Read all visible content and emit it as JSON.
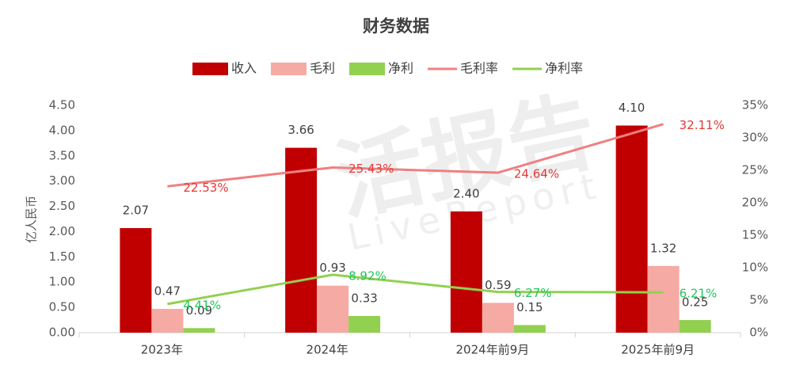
{
  "chart_data": {
    "type": "bar",
    "title": "财务数据",
    "y_label": "亿人民币",
    "watermark": [
      "活报告",
      "LiveReport"
    ],
    "categories": [
      "2023年",
      "2024年",
      "2024年前9月",
      "2025年前9月"
    ],
    "series": [
      {
        "name": "收入",
        "type": "bar",
        "color": "#c00000",
        "values": [
          2.07,
          3.66,
          2.4,
          4.1
        ],
        "value_labels": [
          "2.07",
          "3.66",
          "2.40",
          "4.10"
        ]
      },
      {
        "name": "毛利",
        "type": "bar",
        "color": "#f5aaa3",
        "values": [
          0.47,
          0.93,
          0.59,
          1.32
        ],
        "value_labels": [
          "0.47",
          "0.93",
          "0.59",
          "1.32"
        ]
      },
      {
        "name": "净利",
        "type": "bar",
        "color": "#92d050",
        "values": [
          0.09,
          0.33,
          0.15,
          0.25
        ],
        "value_labels": [
          "0.09",
          "0.33",
          "0.15",
          "0.25"
        ]
      },
      {
        "name": "毛利率",
        "type": "line",
        "axis": "y2",
        "color": "#f08080",
        "label_color": "#e53935",
        "values": [
          22.53,
          25.43,
          24.64,
          32.11
        ],
        "value_labels": [
          "22.53%",
          "25.43%",
          "24.64%",
          "32.11%"
        ]
      },
      {
        "name": "净利率",
        "type": "line",
        "axis": "y2",
        "color": "#92d050",
        "label_color": "#22c55e",
        "values": [
          4.41,
          8.92,
          6.27,
          6.21
        ],
        "value_labels": [
          "4.41%",
          "8.92%",
          "6.27%",
          "6.21%"
        ]
      }
    ],
    "ylim": [
      0,
      4.5
    ],
    "yticks": [
      {
        "value": 0,
        "label": "0.00"
      },
      {
        "value": 0.5,
        "label": "0.50"
      },
      {
        "value": 1,
        "label": "1.00"
      },
      {
        "value": 1.5,
        "label": "1.50"
      },
      {
        "value": 2,
        "label": "2.00"
      },
      {
        "value": 2.5,
        "label": "2.50"
      },
      {
        "value": 3,
        "label": "3.00"
      },
      {
        "value": 3.5,
        "label": "3.50"
      },
      {
        "value": 4,
        "label": "4.00"
      },
      {
        "value": 4.5,
        "label": "4.50"
      }
    ],
    "y2lim": [
      0,
      35
    ],
    "y2ticks": [
      {
        "value": 0,
        "label": "0%"
      },
      {
        "value": 5,
        "label": "5%"
      },
      {
        "value": 10,
        "label": "10%"
      },
      {
        "value": 15,
        "label": "15%"
      },
      {
        "value": 20,
        "label": "20%"
      },
      {
        "value": 25,
        "label": "25%"
      },
      {
        "value": 30,
        "label": "30%"
      },
      {
        "value": 35,
        "label": "35%"
      }
    ],
    "legend": "top",
    "grid": false
  }
}
